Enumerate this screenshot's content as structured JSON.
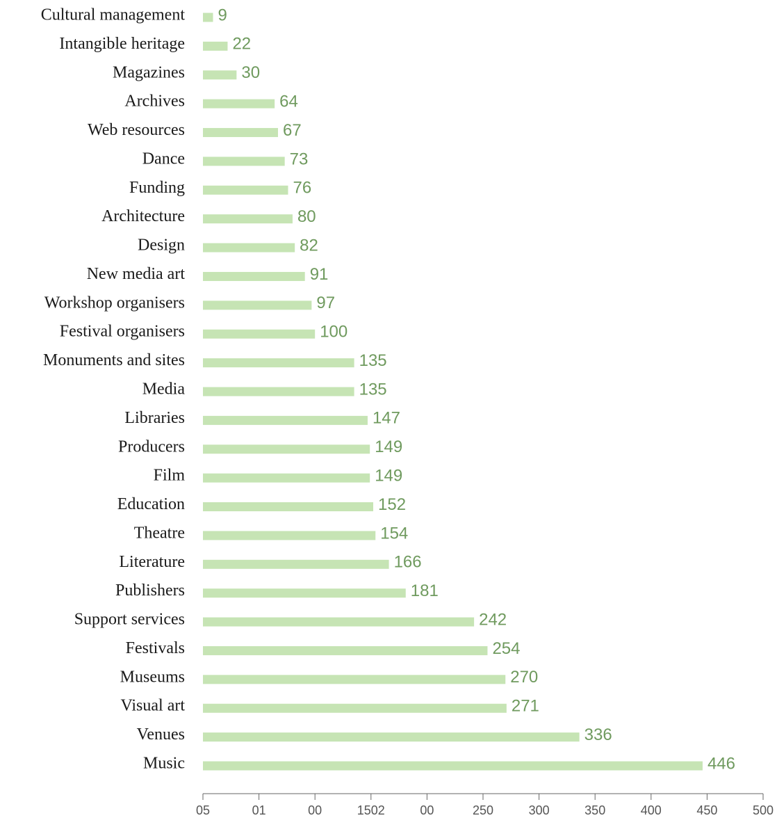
{
  "chart_data": {
    "type": "barh",
    "categories": [
      "Cultural management",
      "Intangible heritage",
      "Magazines",
      "Archives",
      "Web resources",
      "Dance",
      "Funding",
      "Architecture",
      "Design",
      "New media art",
      "Workshop organisers",
      "Festival organisers",
      "Monuments and sites",
      "Media",
      "Libraries",
      "Producers",
      "Film",
      "Education",
      "Theatre",
      "Literature",
      "Publishers",
      "Support services",
      "Festivals",
      "Museums",
      "Visual art",
      "Venues",
      "Music"
    ],
    "values": [
      9,
      22,
      30,
      64,
      67,
      73,
      76,
      80,
      82,
      91,
      97,
      100,
      135,
      135,
      147,
      149,
      149,
      152,
      154,
      166,
      181,
      242,
      254,
      270,
      271,
      336,
      446
    ],
    "color": "#c6e4b4",
    "label_color": "#6f9a5e",
    "xlim": [
      0,
      500
    ],
    "xticks": [
      {
        "value": 0,
        "label": "05"
      },
      {
        "value": 50,
        "label": "01"
      },
      {
        "value": 100,
        "label": "00"
      },
      {
        "value": 150,
        "label": "1502"
      },
      {
        "value": 200,
        "label": "00"
      },
      250,
      300,
      350,
      400,
      450,
      500
    ]
  }
}
